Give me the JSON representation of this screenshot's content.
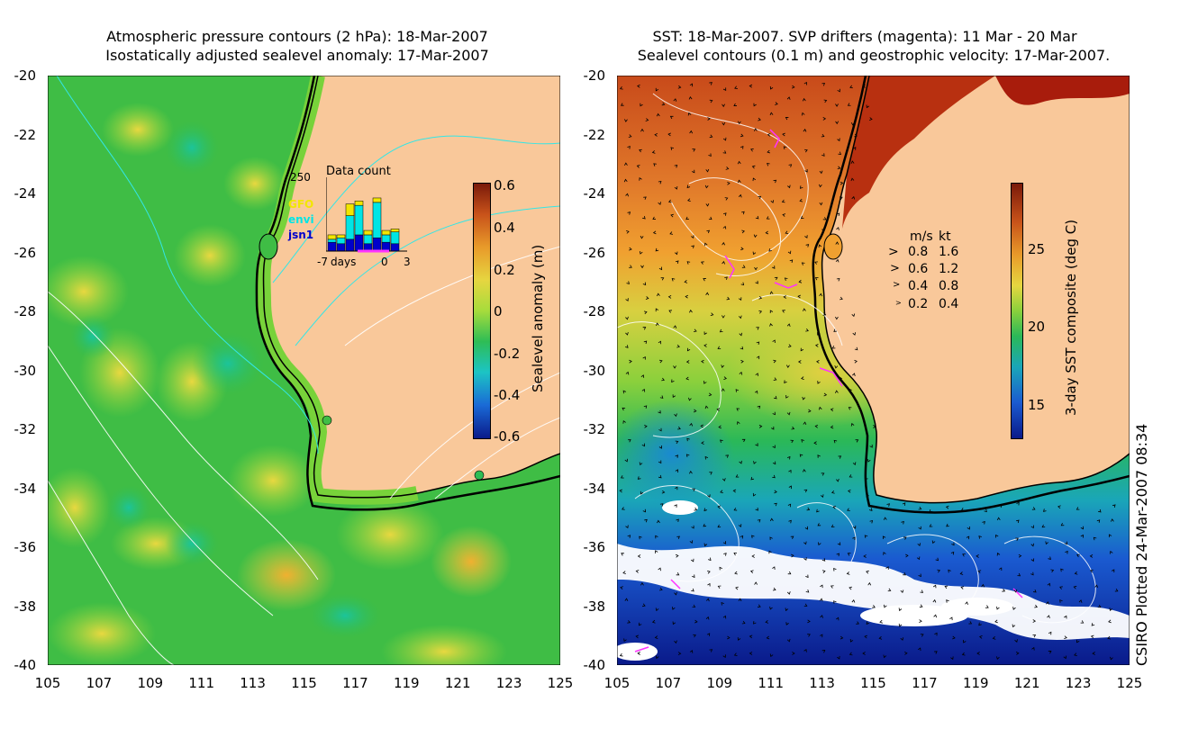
{
  "left_panel": {
    "title_line1": "Atmospheric pressure contours (2 hPa): 18-Mar-2007",
    "title_line2": "Isostatically adjusted sealevel anomaly: 17-Mar-2007",
    "lat_ticks": [
      "-20",
      "-22",
      "-24",
      "-26",
      "-28",
      "-30",
      "-32",
      "-34",
      "-36",
      "-38",
      "-40"
    ],
    "lon_ticks": [
      "105",
      "107",
      "109",
      "111",
      "113",
      "115",
      "117",
      "119",
      "121",
      "123",
      "125"
    ],
    "colorbar": {
      "label": "Sealevel anomaly (m)",
      "ticks": [
        "0.6",
        "0.4",
        "0.2",
        "0",
        "-0.2",
        "-0.4",
        "-0.6"
      ]
    },
    "inset": {
      "title": "Data count",
      "ymax": "250",
      "legend": [
        "GFO",
        "envi",
        "jsn1"
      ],
      "xlabels": [
        "-7",
        "days",
        "0",
        "3"
      ],
      "bars": [
        {
          "jsn1": 30,
          "envi": 10,
          "gfo": 15
        },
        {
          "jsn1": 25,
          "envi": 20,
          "gfo": 10
        },
        {
          "jsn1": 40,
          "envi": 80,
          "gfo": 40
        },
        {
          "jsn1": 55,
          "envi": 100,
          "gfo": 15
        },
        {
          "jsn1": 25,
          "envi": 30,
          "gfo": 15
        },
        {
          "jsn1": 45,
          "envi": 120,
          "gfo": 15
        },
        {
          "jsn1": 30,
          "envi": 25,
          "gfo": 15
        },
        {
          "jsn1": 25,
          "envi": 40,
          "gfo": 10
        }
      ],
      "colors": {
        "jsn1": "#0000cc",
        "envi": "#00e5e5",
        "gfo": "#f2e600"
      }
    }
  },
  "right_panel": {
    "title_line1": "SST: 18-Mar-2007. SVP drifters (magenta): 11 Mar - 20 Mar",
    "title_line2": "Sealevel contours (0.1 m) and geostrophic velocity: 17-Mar-2007.",
    "lat_ticks": [
      "-20",
      "-22",
      "-24",
      "-26",
      "-28",
      "-30",
      "-32",
      "-34",
      "-36",
      "-38",
      "-40"
    ],
    "lon_ticks": [
      "105",
      "107",
      "109",
      "111",
      "113",
      "115",
      "117",
      "119",
      "121",
      "123",
      "125"
    ],
    "colorbar": {
      "label": "3-day SST composite (deg C)",
      "ticks": [
        "25",
        "20",
        "15"
      ]
    },
    "velocity_legend": {
      "header_ms": "m/s",
      "header_kt": "kt",
      "rows": [
        {
          "ms": "0.8",
          "kt": "1.6"
        },
        {
          "ms": "0.6",
          "kt": "1.2"
        },
        {
          "ms": "0.4",
          "kt": "0.8"
        },
        {
          "ms": "0.2",
          "kt": "0.4"
        }
      ]
    }
  },
  "footer_label": "CSIRO Plotted 24-Mar-2007 08:34",
  "colors": {
    "land": "#f9c89a",
    "coast": "#000000",
    "drifter": "#ff33ff",
    "contour_pressure": "#33e6e6",
    "contour_white": "#ffffff"
  }
}
